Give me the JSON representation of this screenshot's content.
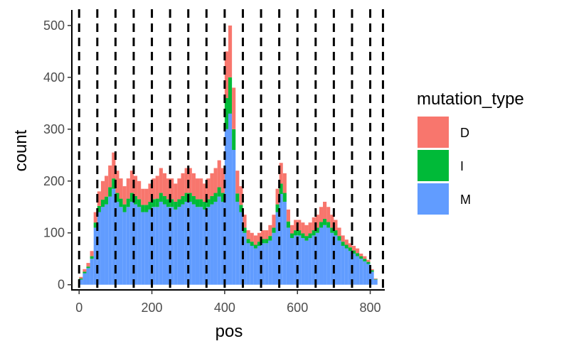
{
  "chart_data": {
    "type": "bar",
    "stacked": true,
    "xlabel": "pos",
    "ylabel": "count",
    "xlim": [
      -20,
      840
    ],
    "ylim": [
      -10,
      530
    ],
    "x_ticks": [
      0,
      200,
      400,
      600,
      800
    ],
    "y_ticks": [
      0,
      100,
      200,
      300,
      400,
      500
    ],
    "vlines": [
      0,
      50,
      100,
      150,
      200,
      250,
      300,
      350,
      400,
      450,
      500,
      550,
      600,
      650,
      700,
      750,
      800,
      835
    ],
    "vline_style": "dashed",
    "legend": {
      "title": "mutation_type",
      "position": "right"
    },
    "bin_width": 10,
    "x": [
      5,
      15,
      25,
      35,
      45,
      55,
      65,
      75,
      85,
      95,
      105,
      115,
      125,
      135,
      145,
      155,
      165,
      175,
      185,
      195,
      205,
      215,
      225,
      235,
      245,
      255,
      265,
      275,
      285,
      295,
      305,
      315,
      325,
      335,
      345,
      355,
      365,
      375,
      385,
      395,
      405,
      415,
      425,
      435,
      445,
      455,
      465,
      475,
      485,
      495,
      505,
      515,
      525,
      535,
      545,
      555,
      565,
      575,
      585,
      595,
      605,
      615,
      625,
      635,
      645,
      655,
      665,
      675,
      685,
      695,
      705,
      715,
      725,
      735,
      745,
      755,
      765,
      775,
      785,
      795,
      805,
      815,
      825
    ],
    "series": [
      {
        "name": "M",
        "color": "#619CFF",
        "values": [
          10,
          22,
          32,
          50,
          110,
          140,
          150,
          155,
          170,
          185,
          160,
          150,
          140,
          150,
          160,
          155,
          150,
          140,
          140,
          145,
          150,
          150,
          160,
          155,
          150,
          150,
          145,
          150,
          155,
          160,
          160,
          155,
          150,
          150,
          145,
          150,
          155,
          160,
          170,
          160,
          300,
          330,
          260,
          160,
          140,
          100,
          80,
          75,
          70,
          75,
          80,
          80,
          85,
          100,
          140,
          175,
          160,
          110,
          90,
          95,
          95,
          90,
          85,
          90,
          95,
          100,
          110,
          115,
          110,
          100,
          95,
          85,
          75,
          70,
          65,
          60,
          55,
          50,
          45,
          40,
          25,
          10,
          0
        ]
      },
      {
        "name": "I",
        "color": "#00BA38",
        "values": [
          2,
          3,
          3,
          5,
          10,
          12,
          14,
          15,
          18,
          20,
          17,
          16,
          15,
          16,
          17,
          16,
          15,
          14,
          14,
          15,
          15,
          16,
          17,
          16,
          15,
          15,
          15,
          15,
          16,
          17,
          17,
          16,
          15,
          15,
          15,
          15,
          16,
          17,
          18,
          17,
          60,
          70,
          40,
          16,
          14,
          10,
          8,
          8,
          7,
          8,
          8,
          8,
          9,
          10,
          15,
          20,
          17,
          12,
          9,
          10,
          10,
          9,
          9,
          9,
          10,
          10,
          11,
          12,
          11,
          10,
          10,
          9,
          8,
          7,
          7,
          6,
          6,
          5,
          5,
          4,
          3,
          1,
          0
        ]
      },
      {
        "name": "D",
        "color": "#F8766D",
        "values": [
          3,
          5,
          7,
          10,
          20,
          28,
          36,
          40,
          42,
          50,
          43,
          39,
          35,
          39,
          43,
          39,
          35,
          31,
          31,
          35,
          40,
          44,
          48,
          44,
          40,
          40,
          35,
          40,
          44,
          48,
          48,
          44,
          40,
          40,
          35,
          40,
          44,
          48,
          52,
          48,
          90,
          100,
          80,
          44,
          36,
          25,
          17,
          17,
          18,
          17,
          17,
          17,
          21,
          25,
          30,
          40,
          38,
          23,
          16,
          20,
          20,
          21,
          21,
          21,
          25,
          25,
          29,
          33,
          29,
          25,
          20,
          16,
          12,
          10,
          8,
          9,
          9,
          5,
          5,
          4,
          2,
          1,
          0
        ]
      }
    ]
  }
}
